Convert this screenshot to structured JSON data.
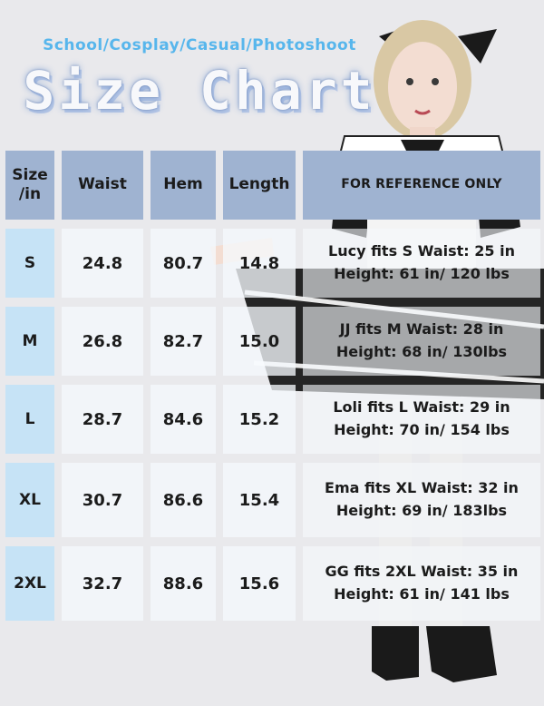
{
  "header": {
    "tagline": "School/Cosplay/Casual/Photoshoot",
    "title": "Size Chart"
  },
  "table": {
    "columns": [
      "Size /in",
      "Waist",
      "Hem",
      "Length",
      "FOR REFERENCE ONLY"
    ],
    "rows": [
      {
        "size": "S",
        "waist": "24.8",
        "hem": "80.7",
        "length": "14.8",
        "note_line1": "Lucy fits S Waist: 25 in",
        "note_line2": "Height: 61 in/ 120 lbs"
      },
      {
        "size": "M",
        "waist": "26.8",
        "hem": "82.7",
        "length": "15.0",
        "note_line1": "JJ fits M Waist: 28 in",
        "note_line2": "Height: 68 in/ 130lbs"
      },
      {
        "size": "L",
        "waist": "28.7",
        "hem": "84.6",
        "length": "15.2",
        "note_line1": "Loli  fits L Waist: 29 in",
        "note_line2": "Height: 70 in/ 154 lbs"
      },
      {
        "size": "XL",
        "waist": "30.7",
        "hem": "86.6",
        "length": "15.4",
        "note_line1": "Ema fits XL Waist: 32 in",
        "note_line2": "Height: 69 in/ 183lbs"
      },
      {
        "size": "2XL",
        "waist": "32.7",
        "hem": "88.6",
        "length": "15.6",
        "note_line1": "GG fits 2XL Waist: 35 in",
        "note_line2": "Height: 61 in/ 141 lbs"
      }
    ]
  },
  "colors": {
    "background": "#e9e9ec",
    "tagline": "#57b6ec",
    "header_cell": "#9fb3d1",
    "size_cell": "#c6e3f6"
  }
}
